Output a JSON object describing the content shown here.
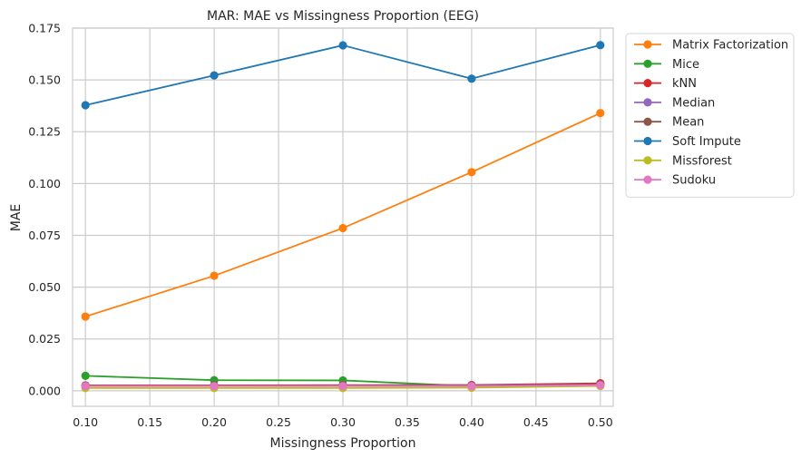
{
  "chart_data": {
    "type": "line",
    "title": "MAR: MAE vs Missingness Proportion (EEG)",
    "xlabel": "Missingness Proportion",
    "ylabel": "MAE",
    "x": [
      0.1,
      0.2,
      0.3,
      0.4,
      0.5
    ],
    "xlim": [
      0.09,
      0.51
    ],
    "ylim": [
      -0.0075,
      0.175
    ],
    "xticks": [
      "0.10",
      "0.15",
      "0.20",
      "0.25",
      "0.30",
      "0.35",
      "0.40",
      "0.45",
      "0.50"
    ],
    "xtick_values": [
      0.1,
      0.15,
      0.2,
      0.25,
      0.3,
      0.35,
      0.4,
      0.45,
      0.5
    ],
    "yticks": [
      "0.000",
      "0.025",
      "0.050",
      "0.075",
      "0.100",
      "0.125",
      "0.150",
      "0.175"
    ],
    "ytick_values": [
      0,
      0.025,
      0.05,
      0.075,
      0.1,
      0.125,
      0.15,
      0.175
    ],
    "grid": true,
    "legend_position": "outside-top-right",
    "series": [
      {
        "name": "Matrix Factorization",
        "color": "#ff7f0e",
        "values": [
          0.0358,
          0.0555,
          0.0785,
          0.1055,
          0.134
        ]
      },
      {
        "name": "Mice",
        "color": "#2ca02c",
        "values": [
          0.0072,
          0.0051,
          0.005,
          0.0022,
          0.0033
        ]
      },
      {
        "name": "kNN",
        "color": "#d62728",
        "values": [
          0.0026,
          0.0026,
          0.0027,
          0.0028,
          0.0036
        ]
      },
      {
        "name": "Median",
        "color": "#9467bd",
        "values": [
          0.0024,
          0.0024,
          0.0025,
          0.0026,
          0.0031
        ]
      },
      {
        "name": "Mean",
        "color": "#8c564b",
        "values": [
          0.0023,
          0.0023,
          0.0024,
          0.0025,
          0.003
        ]
      },
      {
        "name": "Soft Impute",
        "color": "#1f77b4",
        "values": [
          0.1378,
          0.1522,
          0.1667,
          0.1506,
          0.1668
        ]
      },
      {
        "name": "Missforest",
        "color": "#bcbd22",
        "values": [
          0.0013,
          0.0013,
          0.0013,
          0.0015,
          0.0023
        ]
      },
      {
        "name": "Sudoku",
        "color": "#e377c2",
        "values": [
          0.0022,
          0.0022,
          0.0022,
          0.0022,
          0.0027
        ]
      }
    ]
  }
}
